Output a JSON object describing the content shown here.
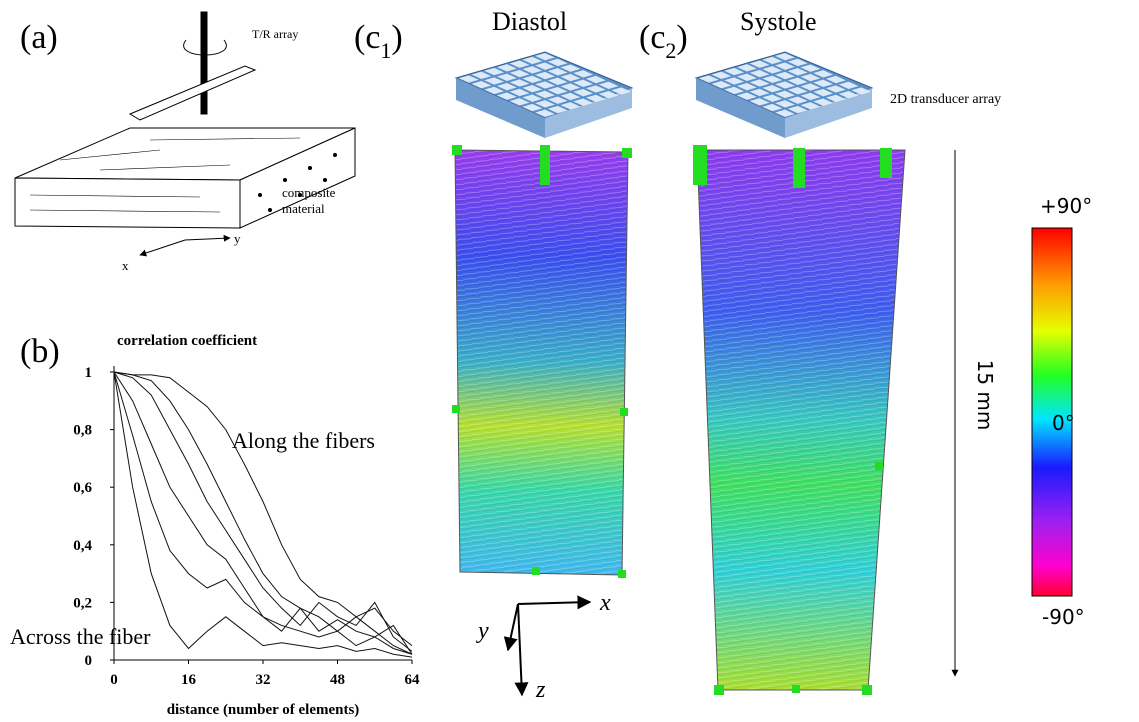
{
  "panels": {
    "a": {
      "label": "(a)",
      "array_label": "T/R array",
      "material_label": [
        "composite",
        "material"
      ],
      "axis_x": "x",
      "axis_y": "y"
    },
    "b": {
      "label": "(b)"
    },
    "c1": {
      "open": "(c",
      "sub": "1",
      "close": ")",
      "title": "Diastol"
    },
    "c2": {
      "open": "(c",
      "sub": "2",
      "close": ")",
      "title": "Systole"
    },
    "transducer_label": "2D transducer array",
    "depth_label": "15 mm",
    "axes": {
      "x": "x",
      "y": "y",
      "z": "z"
    },
    "colorbar": {
      "top": "+90°",
      "middle": "0°",
      "bottom": "-90°"
    }
  },
  "chart_data": {
    "type": "line",
    "ylabel": "correlation coefficient",
    "xlabel": "distance (number of elements)",
    "annotations": [
      "Along the fibers",
      "Across the fiber"
    ],
    "x": [
      0,
      4,
      8,
      12,
      16,
      20,
      24,
      28,
      32,
      36,
      40,
      44,
      48,
      52,
      56,
      60,
      64
    ],
    "xlim": [
      0,
      64
    ],
    "ylim": [
      0,
      1
    ],
    "xticks": [
      0,
      16,
      32,
      48,
      64
    ],
    "yticks": [
      0,
      {
        "value": 0.2,
        "label": "0,2"
      },
      {
        "value": 0.4,
        "label": "0,4"
      },
      {
        "value": 0.6,
        "label": "0,6"
      },
      {
        "value": 0.8,
        "label": "0,8"
      },
      1
    ],
    "series": [
      {
        "color": "#111",
        "values": [
          1,
          0.99,
          0.99,
          0.98,
          0.93,
          0.88,
          0.8,
          0.68,
          0.55,
          0.4,
          0.28,
          0.22,
          0.2,
          0.15,
          0.18,
          0.1,
          0.05
        ]
      },
      {
        "color": "#111",
        "values": [
          1,
          0.99,
          0.97,
          0.9,
          0.8,
          0.68,
          0.55,
          0.42,
          0.3,
          0.22,
          0.18,
          0.15,
          0.1,
          0.15,
          0.1,
          0.05,
          0.02
        ]
      },
      {
        "color": "#111",
        "values": [
          1,
          0.98,
          0.92,
          0.8,
          0.68,
          0.55,
          0.45,
          0.35,
          0.25,
          0.18,
          0.12,
          0.2,
          0.15,
          0.12,
          0.2,
          0.08,
          0.03
        ]
      },
      {
        "color": "#111",
        "values": [
          1,
          0.9,
          0.75,
          0.6,
          0.5,
          0.4,
          0.35,
          0.25,
          0.15,
          0.1,
          0.18,
          0.1,
          0.14,
          0.1,
          0.08,
          0.12,
          0.02
        ]
      },
      {
        "color": "#111",
        "values": [
          1,
          0.78,
          0.55,
          0.38,
          0.3,
          0.25,
          0.28,
          0.2,
          0.15,
          0.12,
          0.1,
          0.08,
          0.1,
          0.05,
          0.08,
          0.04,
          0.02
        ]
      },
      {
        "color": "#111",
        "values": [
          1,
          0.6,
          0.3,
          0.12,
          0.04,
          0.1,
          0.15,
          0.1,
          0.05,
          0.06,
          0.05,
          0.04,
          0.05,
          0.03,
          0.04,
          0.02,
          0.01
        ]
      }
    ]
  }
}
